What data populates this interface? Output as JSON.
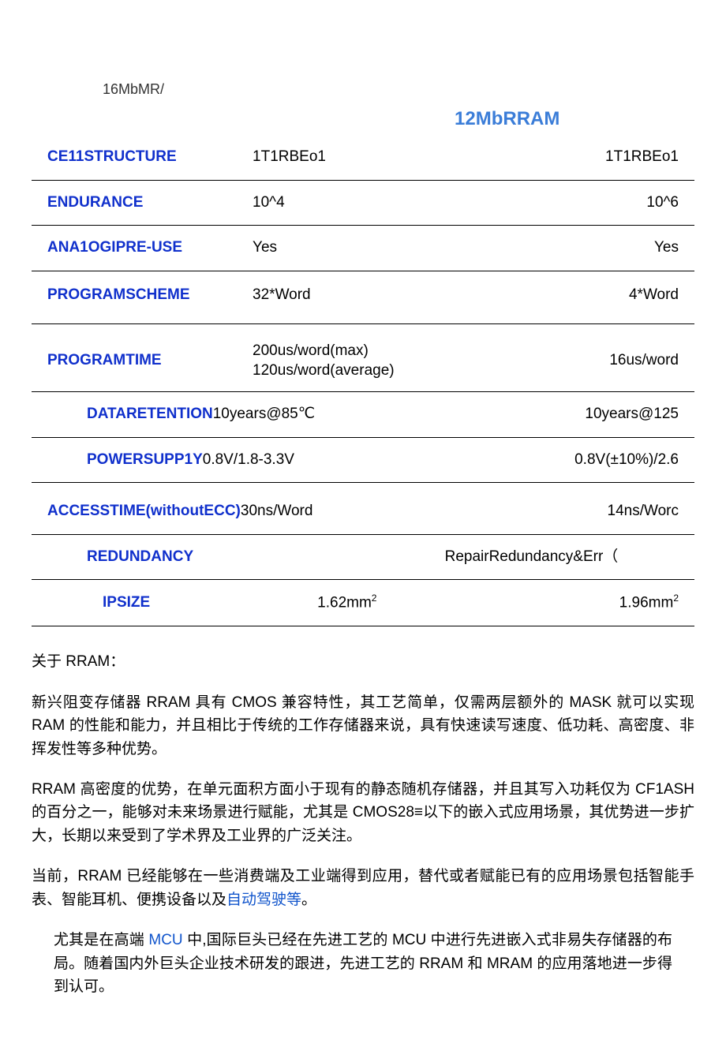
{
  "header": {
    "top_text": "16MbMR/"
  },
  "table": {
    "title": "12MbRRAM",
    "rows": [
      {
        "label": "CE11STRUCTURE",
        "col1": "1T1RBEo1",
        "col2": "1T1RBEo1",
        "indent": 0
      },
      {
        "label": "ENDURANCE",
        "col1": "10^4",
        "col2": "10^6",
        "indent": 0
      },
      {
        "label": "ANA1OGIPRE-USE",
        "col1": "Yes",
        "col2": "Yes",
        "indent": 0
      },
      {
        "label": "PROGRAMSCHEME",
        "col1": "32*Word",
        "col2": "4*Word",
        "indent": 0
      },
      {
        "label": "PROGRAMTIME",
        "col1_line1": "200us/word(max)",
        "col1_line2": "120us/word(average)",
        "col2": "16us/word",
        "indent": 0
      },
      {
        "label": "DATARETENTION",
        "inline_value": "10years@85℃",
        "col2": "10years@125",
        "indent": 2
      },
      {
        "label": "POWERSUPP1Y",
        "inline_value": "0.8V/1.8-3.3V",
        "col2": "0.8V(±10%)/2.6",
        "indent": 2
      },
      {
        "label": "ACCESSTIME(withoutECC)",
        "inline_value": "30ns/Word",
        "col2": "14ns/Worc",
        "indent": 0
      },
      {
        "label": "REDUNDANCY",
        "col1": "",
        "col2": "RepairRedundancy&Err（",
        "indent": 2
      },
      {
        "label": "IPSIZE",
        "col1": "1.62mm",
        "col1_sup": "2",
        "col2": "1.96mm",
        "col2_sup": "2",
        "indent": 3
      }
    ]
  },
  "paragraphs": {
    "p1": "关于 RRAM：",
    "p2": "新兴阻变存储器 RRAM 具有 CMOS 兼容特性，其工艺简单，仅需两层额外的 MASK 就可以实现 RAM 的性能和能力，并且相比于传统的工作存储器来说，具有快速读写速度、低功耗、高密度、非挥发性等多种优势。",
    "p3": "RRAM 高密度的优势，在单元面积方面小于现有的静态随机存储器，并且其写入功耗仅为 CF1ASH 的百分之一，能够对未来场景进行赋能，尤其是 CMOS28≡以下的嵌入式应用场景，其优势进一步扩大，长期以来受到了学术界及工业界的广泛关注。",
    "p4_part1": "当前，RRAM 已经能够在一些消费端及工业端得到应用，替代或者赋能已有的应用场景包括智能手表、智能耳机、便携设备以及",
    "p4_link": "自动驾驶等",
    "p4_part2": "。",
    "p5_part1": "尤其是在高端 ",
    "p5_link": "MCU",
    "p5_part2": " 中,国际巨头已经在先进工艺的 MCU 中进行先进嵌入式非易失存储器的布局。随着国内外巨头企业技术研发的跟进，先进工艺的 RRAM 和 MRAM 的应用落地进一步得到认可。"
  },
  "colors": {
    "label_blue": "#1030cc",
    "title_blue": "#3b7dd8",
    "link_blue": "#1155cc",
    "text_black": "#000000",
    "background": "#ffffff"
  }
}
